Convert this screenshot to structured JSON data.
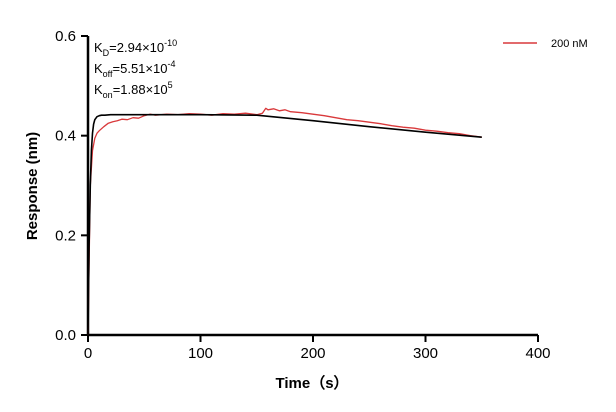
{
  "chart_data": {
    "type": "line",
    "xlabel": "Time（s）",
    "ylabel": "Response (nm)",
    "xlim": [
      0,
      400
    ],
    "ylim": [
      0,
      0.6
    ],
    "xticks": [
      "0",
      "100",
      "200",
      "300",
      "400"
    ],
    "yticks": [
      "0.0",
      "0.2",
      "0.4",
      "0.6"
    ],
    "x_tick_values": [
      0,
      100,
      200,
      300,
      400
    ],
    "y_tick_values": [
      0,
      0.2,
      0.4,
      0.6
    ],
    "grid": false,
    "legend_position": "top-right",
    "annotations": {
      "kd": {
        "main": "K",
        "sub": "D",
        "rest": "=2.94×10",
        "sup": "-10"
      },
      "koff": {
        "main": "K",
        "sub": "off",
        "rest": "=5.51×10",
        "sup": "-4"
      },
      "kon": {
        "main": "K",
        "sub": "on",
        "rest": "=1.88×10",
        "sup": "5"
      }
    },
    "series": [
      {
        "name": "200 nM",
        "role": "measured",
        "color": "#d9393b",
        "x": [
          0,
          2,
          4,
          6,
          8,
          10,
          14,
          18,
          22,
          26,
          30,
          35,
          40,
          45,
          50,
          55,
          60,
          70,
          80,
          90,
          100,
          110,
          120,
          130,
          140,
          150,
          155,
          158,
          160,
          165,
          170,
          175,
          180,
          190,
          200,
          210,
          220,
          230,
          240,
          250,
          260,
          270,
          280,
          290,
          300,
          310,
          320,
          330,
          340,
          350
        ],
        "y": [
          0.0,
          0.3,
          0.37,
          0.395,
          0.405,
          0.41,
          0.418,
          0.425,
          0.428,
          0.43,
          0.433,
          0.432,
          0.436,
          0.435,
          0.44,
          0.443,
          0.441,
          0.443,
          0.442,
          0.444,
          0.443,
          0.441,
          0.444,
          0.443,
          0.445,
          0.442,
          0.445,
          0.455,
          0.452,
          0.454,
          0.45,
          0.452,
          0.448,
          0.446,
          0.443,
          0.44,
          0.436,
          0.432,
          0.43,
          0.427,
          0.424,
          0.42,
          0.417,
          0.415,
          0.411,
          0.409,
          0.406,
          0.404,
          0.4,
          0.397
        ]
      },
      {
        "role": "fit",
        "color": "#000000",
        "x": [
          0,
          1,
          2,
          3,
          4,
          5,
          6,
          8,
          10,
          12,
          15,
          20,
          30,
          50,
          100,
          150,
          200,
          250,
          300,
          350
        ],
        "y": [
          0.0,
          0.18,
          0.3,
          0.37,
          0.405,
          0.423,
          0.432,
          0.438,
          0.44,
          0.441,
          0.441,
          0.442,
          0.442,
          0.442,
          0.442,
          0.441,
          0.43,
          0.418,
          0.407,
          0.397
        ]
      }
    ]
  }
}
